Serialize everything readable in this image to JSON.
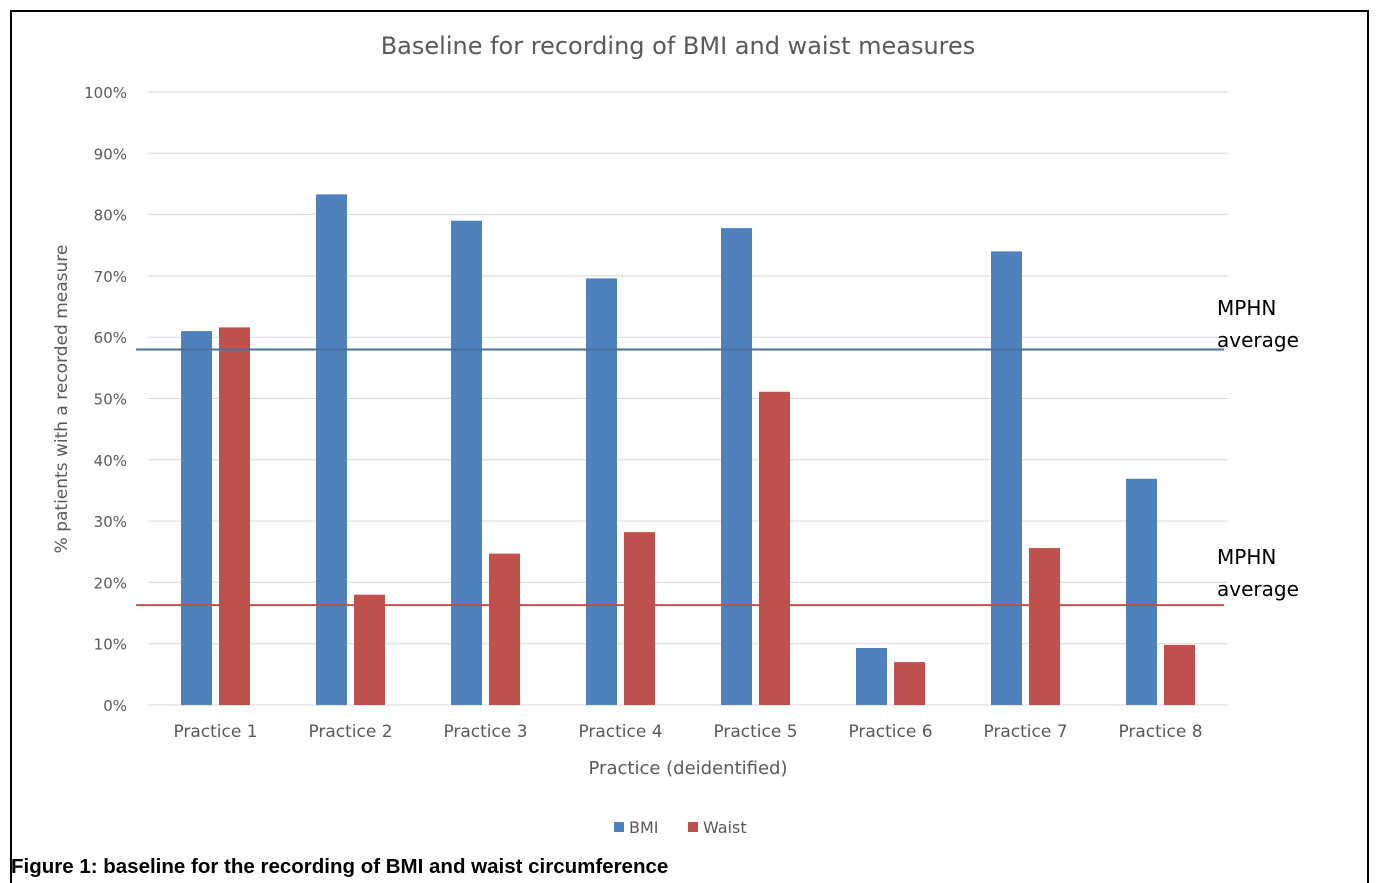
{
  "caption": "Figure 1: baseline for the recording of BMI and waist circumference",
  "colors": {
    "bmi": "#4f81bd",
    "waist": "#c0504d",
    "bmi_line": "#4a6f9f",
    "waist_line": "#c0504d",
    "grid": "#d9d9d9",
    "text": "#595959"
  },
  "chart_data": {
    "type": "bar",
    "title": "Baseline for recording of BMI and waist measures",
    "xlabel": "Practice (deidentified)",
    "ylabel": "% patients with a recorded measure",
    "categories": [
      "Practice 1",
      "Practice 2",
      "Practice 3",
      "Practice 4",
      "Practice 5",
      "Practice 6",
      "Practice 7",
      "Practice 8"
    ],
    "series": [
      {
        "name": "BMI",
        "values": [
          61,
          83.3,
          79,
          69.6,
          77.8,
          9.3,
          74,
          36.9
        ]
      },
      {
        "name": "Waist",
        "values": [
          61.6,
          18,
          24.7,
          28.2,
          51.1,
          7,
          25.6,
          9.8
        ]
      }
    ],
    "ylim": [
      0,
      100
    ],
    "yticks": [
      "0%",
      "10%",
      "20%",
      "30%",
      "40%",
      "50%",
      "60%",
      "70%",
      "80%",
      "90%",
      "100%"
    ],
    "grid": true,
    "legend_position": "bottom",
    "reference_lines": [
      {
        "series": "BMI",
        "value": 58,
        "label": [
          "MPHN",
          "average"
        ]
      },
      {
        "series": "Waist",
        "value": 16.3,
        "label": [
          "MPHN",
          "average"
        ]
      }
    ]
  }
}
